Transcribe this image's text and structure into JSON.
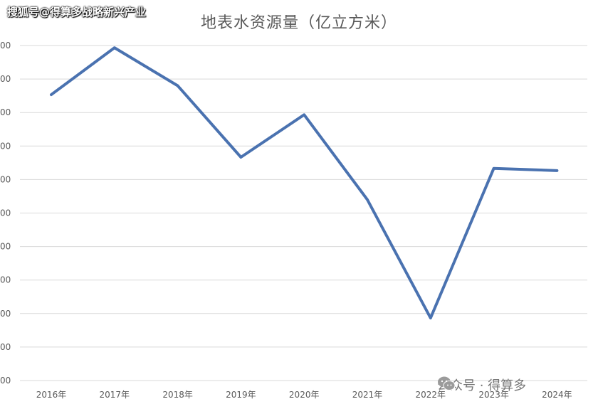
{
  "watermark_top": "搜狐号@得算多战略新兴产业",
  "watermark_bottom": "公众号 · 得算多",
  "chart_data": {
    "type": "line",
    "title": "地表水资源量（亿立方米）",
    "categories": [
      "2016年",
      "2017年",
      "2018年",
      "2019年",
      "2020年",
      "2021年",
      "2022年",
      "2023年",
      "2024年"
    ],
    "series": [
      {
        "values": [
          26800,
          28900,
          27200,
          24000,
          25900,
          22100,
          16800,
          23500,
          23400
        ]
      }
    ],
    "ylim": [
      14000,
      29000
    ],
    "ytick_labels": [
      "00",
      "00",
      "00",
      "00",
      "00",
      "00",
      "00",
      "00",
      "00",
      "00",
      "00"
    ],
    "line_color": "#4a72b0",
    "grid": true
  }
}
